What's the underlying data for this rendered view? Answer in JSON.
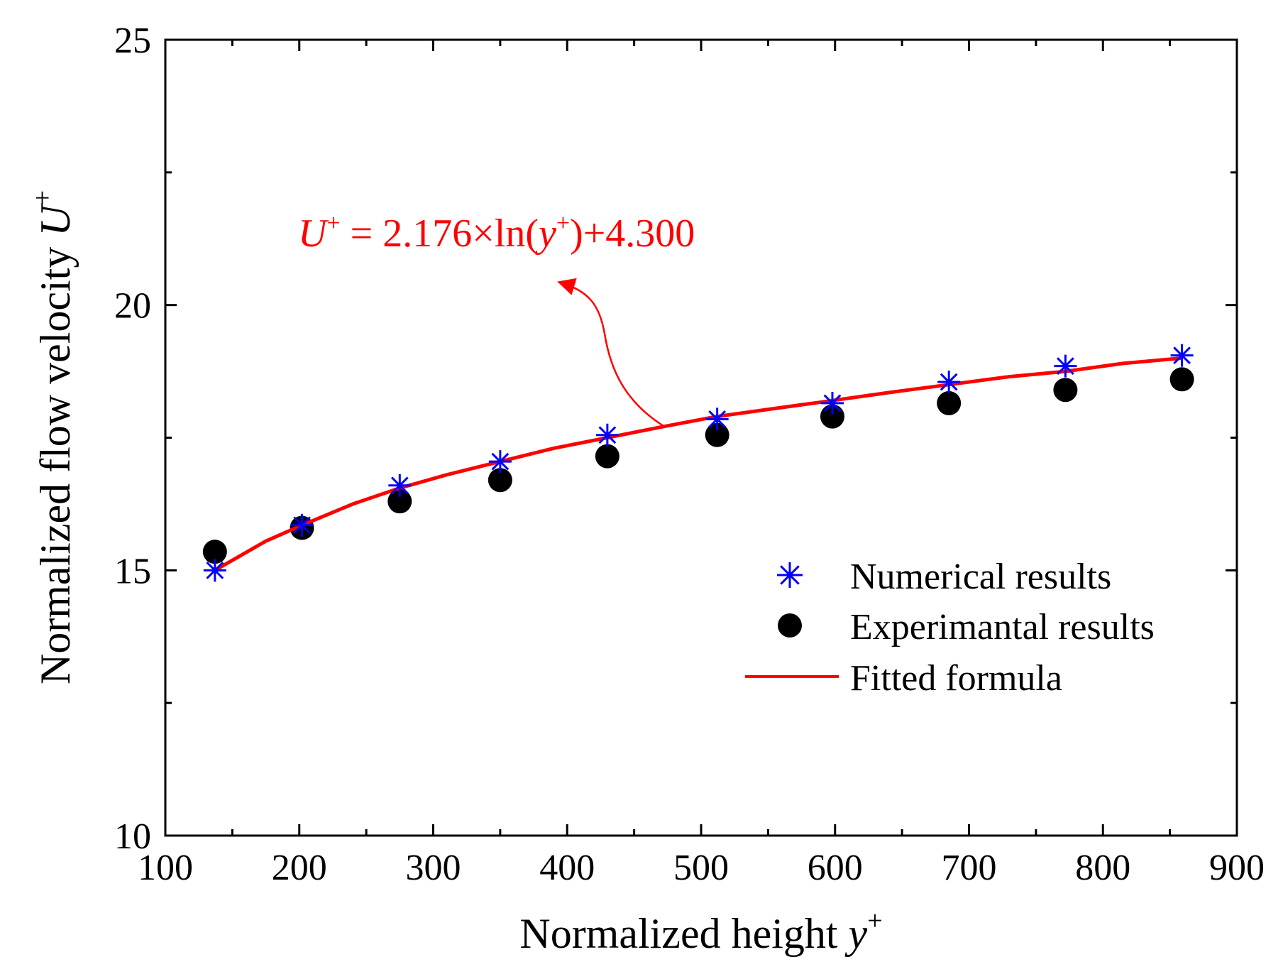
{
  "chart_data": {
    "type": "scatter",
    "title": "",
    "xlabel": "Normalized height",
    "xlabel_var": "y",
    "xlabel_sup": "+",
    "ylabel": "Normalized flow velocity",
    "ylabel_var": "U",
    "ylabel_sup": "+",
    "xlim": [
      100,
      900
    ],
    "ylim": [
      10,
      25
    ],
    "xticks": [
      100,
      200,
      300,
      400,
      500,
      600,
      700,
      800,
      900
    ],
    "yticks": [
      10,
      15,
      20,
      25
    ],
    "xticks_minor": [
      150,
      250,
      350,
      450,
      550,
      650,
      750,
      850
    ],
    "yticks_minor": [
      12.5,
      17.5,
      22.5
    ],
    "grid": false,
    "legend_position": "bottom-right",
    "series": [
      {
        "name": "Numerical results",
        "marker": "asterisk",
        "color": "#0000ff",
        "x": [
          137,
          202,
          275,
          350,
          430,
          512,
          598,
          685,
          772,
          859
        ],
        "y": [
          15.0,
          15.85,
          16.6,
          17.05,
          17.55,
          17.85,
          18.15,
          18.55,
          18.85,
          19.05
        ]
      },
      {
        "name": "Experimantal results",
        "marker": "circle",
        "color": "#000000",
        "x": [
          137,
          202,
          275,
          350,
          430,
          512,
          598,
          685,
          772,
          859
        ],
        "y": [
          15.35,
          15.8,
          16.3,
          16.7,
          17.15,
          17.55,
          17.9,
          18.15,
          18.4,
          18.6
        ]
      },
      {
        "name": "Fitted formula",
        "marker": "line",
        "color": "#ff0000",
        "formula": "U+ = 2.176*ln(y+)+4.300",
        "x": [
          137,
          175,
          202,
          240,
          275,
          310,
          350,
          390,
          430,
          470,
          512,
          555,
          598,
          640,
          685,
          730,
          772,
          815,
          859
        ],
        "y": [
          15.0,
          15.55,
          15.85,
          16.25,
          16.55,
          16.8,
          17.05,
          17.3,
          17.5,
          17.7,
          17.9,
          18.05,
          18.2,
          18.35,
          18.5,
          18.65,
          18.75,
          18.9,
          19.0
        ]
      }
    ],
    "annotation": {
      "text_var": "U",
      "text_sup": "+",
      "text_main": " = 2.176×ln(",
      "text_var2": "y",
      "text_sup2": "+",
      "text_tail": ")+4.300",
      "color": "#ff0000"
    }
  }
}
